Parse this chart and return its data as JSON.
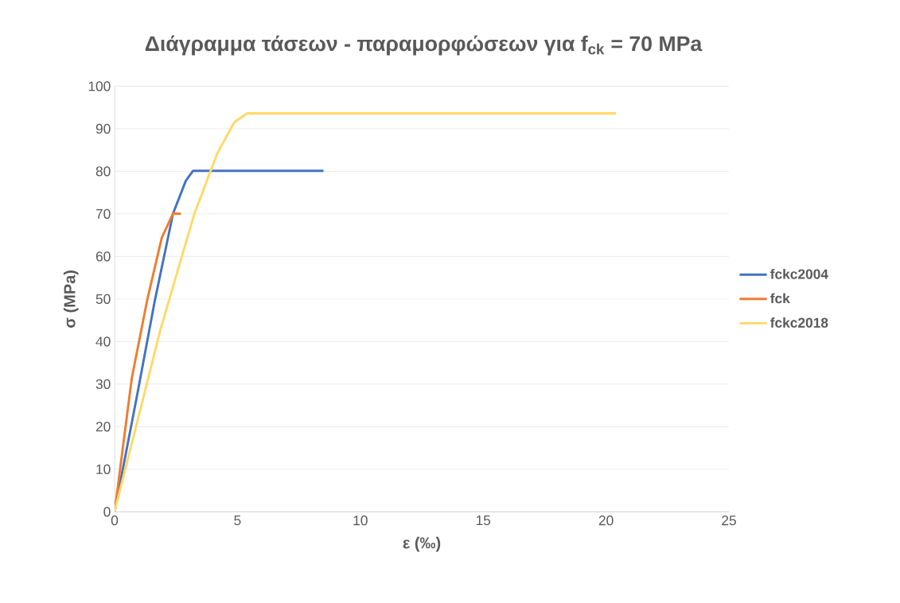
{
  "chart_data": {
    "type": "line",
    "title": "Διάγραμμα τάσεων - παραμορφώσεων για f$_{ck}$ = 70 MPa",
    "xlabel": "ε (‰)",
    "ylabel": "σ (MPa)",
    "series": [
      {
        "name": "fckc2004",
        "color": "#4472c4",
        "x": [
          0,
          0.94,
          1.63,
          2.38,
          2.9,
          3.19,
          8.5
        ],
        "values": [
          0,
          28.1,
          49.4,
          70.1,
          77.8,
          80.1,
          80.1
        ]
      },
      {
        "name": "fck",
        "color": "#ed7d31",
        "x": [
          0,
          0.7,
          1.34,
          1.92,
          2.38,
          2.7
        ],
        "values": [
          0,
          31.4,
          50.1,
          64.4,
          70.1,
          70
        ]
      },
      {
        "name": "fckc2018",
        "color": "#ffd966",
        "x": [
          0,
          0.7,
          1.86,
          3.25,
          4.17,
          4.87,
          5.39,
          20.4
        ],
        "values": [
          0,
          16.1,
          42.7,
          70.1,
          84.1,
          91.5,
          93.6,
          93.6
        ]
      }
    ],
    "xlim": [
      0,
      25
    ],
    "ylim": [
      0,
      100
    ],
    "xticks": [
      0,
      5,
      10,
      15,
      20,
      25
    ],
    "yticks": [
      0,
      10,
      20,
      30,
      40,
      50,
      60,
      70,
      80,
      90,
      100
    ],
    "grid": "y",
    "legend": "right",
    "marker": "none",
    "line_style": "solid"
  }
}
